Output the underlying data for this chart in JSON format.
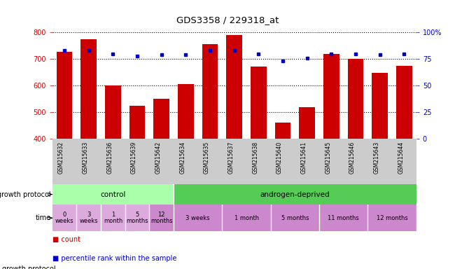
{
  "title": "GDS3358 / 229318_at",
  "samples": [
    "GSM215632",
    "GSM215633",
    "GSM215636",
    "GSM215639",
    "GSM215642",
    "GSM215634",
    "GSM215635",
    "GSM215637",
    "GSM215638",
    "GSM215640",
    "GSM215641",
    "GSM215645",
    "GSM215646",
    "GSM215643",
    "GSM215644"
  ],
  "counts": [
    726,
    773,
    600,
    525,
    550,
    607,
    756,
    790,
    672,
    462,
    520,
    720,
    700,
    648,
    675
  ],
  "percentile": [
    83,
    83,
    80,
    78,
    79,
    79,
    83,
    83,
    80,
    73,
    76,
    80,
    80,
    79,
    80
  ],
  "ymin": 400,
  "ymax": 800,
  "yticks": [
    400,
    500,
    600,
    700,
    800
  ],
  "right_yticks": [
    0,
    25,
    50,
    75,
    100
  ],
  "bar_color": "#cc0000",
  "dot_color": "#0000cc",
  "protocol_groups": [
    {
      "label": "control",
      "start": 0,
      "end": 5,
      "color": "#aaffaa"
    },
    {
      "label": "androgen-deprived",
      "start": 5,
      "end": 15,
      "color": "#55cc55"
    }
  ],
  "time_groups": [
    {
      "label": "0\nweeks",
      "start": 0,
      "end": 1,
      "color": "#ddaadd"
    },
    {
      "label": "3\nweeks",
      "start": 1,
      "end": 2,
      "color": "#ddaadd"
    },
    {
      "label": "1\nmonth",
      "start": 2,
      "end": 3,
      "color": "#ddaadd"
    },
    {
      "label": "5\nmonths",
      "start": 3,
      "end": 4,
      "color": "#ddaadd"
    },
    {
      "label": "12\nmonths",
      "start": 4,
      "end": 5,
      "color": "#cc88cc"
    },
    {
      "label": "3 weeks",
      "start": 5,
      "end": 7,
      "color": "#cc88cc"
    },
    {
      "label": "1 month",
      "start": 7,
      "end": 9,
      "color": "#cc88cc"
    },
    {
      "label": "5 months",
      "start": 9,
      "end": 11,
      "color": "#cc88cc"
    },
    {
      "label": "11 months",
      "start": 11,
      "end": 13,
      "color": "#cc88cc"
    },
    {
      "label": "12 months",
      "start": 13,
      "end": 15,
      "color": "#cc88cc"
    }
  ],
  "growth_protocol_label": "growth protocol",
  "time_label": "time",
  "sample_bg_color": "#cccccc",
  "fig_width": 6.5,
  "fig_height": 3.84
}
